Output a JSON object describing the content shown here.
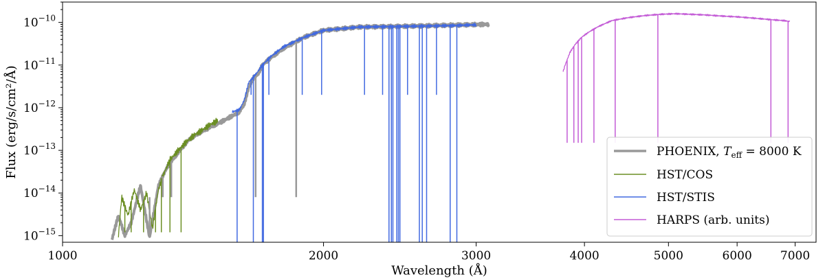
{
  "chart_data": {
    "type": "line",
    "title": "",
    "xlabel": "Wavelength (Å)",
    "ylabel": "Flux (erg/s/cm²/Å)",
    "x_scale": "log",
    "y_scale": "log",
    "xlim": [
      1000,
      7400
    ],
    "ylim": [
      7e-16,
      3e-10
    ],
    "x_ticks": [
      {
        "value": 1000,
        "label": "1000"
      },
      {
        "value": 2000,
        "label": "2000"
      },
      {
        "value": 3000,
        "label": "3000"
      },
      {
        "value": 4000,
        "label": "4000"
      },
      {
        "value": 5000,
        "label": "5000"
      },
      {
        "value": 6000,
        "label": "6000"
      },
      {
        "value": 7000,
        "label": "7000"
      }
    ],
    "y_ticks": [
      {
        "exp": -15,
        "label_base": "10",
        "label_exp": "−15"
      },
      {
        "exp": -14,
        "label_base": "10",
        "label_exp": "−14"
      },
      {
        "exp": -13,
        "label_base": "10",
        "label_exp": "−13"
      },
      {
        "exp": -12,
        "label_base": "10",
        "label_exp": "−12"
      },
      {
        "exp": -11,
        "label_base": "10",
        "label_exp": "−11"
      },
      {
        "exp": -10,
        "label_base": "10",
        "label_exp": "−10"
      }
    ],
    "grid": false,
    "legend_position": "bottom-right",
    "series": [
      {
        "name": "PHOENIX, T_eff = 8000 K",
        "legend_label": "PHOENIX, ",
        "legend_math": "T",
        "legend_sub": "eff",
        "legend_tail": " = 8000 K",
        "color": "#999999",
        "points": [
          [
            1140,
            8e-16
          ],
          [
            1160,
            3e-15
          ],
          [
            1180,
            1e-15
          ],
          [
            1200,
            2e-15
          ],
          [
            1230,
            1.5e-14
          ],
          [
            1260,
            9e-16
          ],
          [
            1290,
            1.5e-14
          ],
          [
            1320,
            4e-14
          ],
          [
            1360,
            9e-14
          ],
          [
            1400,
            1.8e-13
          ],
          [
            1440,
            2.6e-13
          ],
          [
            1480,
            3.5e-13
          ],
          [
            1520,
            4.5e-13
          ],
          [
            1560,
            6e-13
          ],
          [
            1600,
            8e-13
          ],
          [
            1620,
            1.2e-12
          ],
          [
            1640,
            3e-12
          ],
          [
            1660,
            5e-12
          ],
          [
            1680,
            6e-12
          ],
          [
            1700,
            1e-11
          ],
          [
            1740,
            1.5e-11
          ],
          [
            1800,
            2.5e-11
          ],
          [
            1900,
            4.5e-11
          ],
          [
            2000,
            6.5e-11
          ],
          [
            2200,
            7.8e-11
          ],
          [
            2400,
            8e-11
          ],
          [
            2600,
            8.3e-11
          ],
          [
            2800,
            8.6e-11
          ],
          [
            3000,
            8.9e-11
          ],
          [
            3100,
            9e-11
          ]
        ]
      },
      {
        "name": "HST/COS",
        "legend_label": "HST/COS",
        "color": "#6b8e23",
        "points": [
          [
            1160,
            1e-15
          ],
          [
            1170,
            8e-15
          ],
          [
            1190,
            3e-15
          ],
          [
            1210,
            1.2e-14
          ],
          [
            1230,
            4e-15
          ],
          [
            1250,
            1e-14
          ],
          [
            1270,
            1.5e-15
          ],
          [
            1290,
            1.2e-14
          ],
          [
            1310,
            3e-14
          ],
          [
            1330,
            6e-14
          ],
          [
            1360,
            1e-13
          ],
          [
            1390,
            1.6e-13
          ],
          [
            1420,
            2.3e-13
          ],
          [
            1450,
            3e-13
          ],
          [
            1480,
            4e-13
          ],
          [
            1510,
            5e-13
          ]
        ]
      },
      {
        "name": "HST/STIS",
        "legend_label": "HST/STIS",
        "color": "#4169e1",
        "points": [
          [
            1570,
            8e-13
          ],
          [
            1600,
            9e-13
          ],
          [
            1620,
            1.5e-12
          ],
          [
            1640,
            4e-12
          ],
          [
            1670,
            6e-12
          ],
          [
            1700,
            1e-11
          ],
          [
            1740,
            1.6e-11
          ],
          [
            1800,
            2.7e-11
          ],
          [
            1900,
            4.5e-11
          ],
          [
            2000,
            6.5e-11
          ],
          [
            2200,
            7.8e-11
          ],
          [
            2400,
            8e-11
          ],
          [
            2600,
            8.2e-11
          ],
          [
            2800,
            8.4e-11
          ],
          [
            2900,
            8.6e-11
          ],
          [
            3000,
            8.8e-11
          ]
        ]
      },
      {
        "name": "HARPS (arb. units)",
        "legend_label": "HARPS (arb. units)",
        "color": "#c35bd6",
        "points": [
          [
            3780,
            7e-12
          ],
          [
            3800,
            1e-11
          ],
          [
            3850,
            2e-11
          ],
          [
            3900,
            3e-11
          ],
          [
            3970,
            4.5e-11
          ],
          [
            4050,
            6e-11
          ],
          [
            4150,
            8e-11
          ],
          [
            4300,
            1.1e-10
          ],
          [
            4500,
            1.3e-10
          ],
          [
            4700,
            1.45e-10
          ],
          [
            4900,
            1.55e-10
          ],
          [
            5100,
            1.6e-10
          ],
          [
            5300,
            1.55e-10
          ],
          [
            5500,
            1.5e-10
          ],
          [
            5800,
            1.4e-10
          ],
          [
            6000,
            1.35e-10
          ],
          [
            6300,
            1.25e-10
          ],
          [
            6600,
            1.15e-10
          ],
          [
            6800,
            1.1e-10
          ],
          [
            6900,
            1.05e-10
          ]
        ]
      }
    ],
    "absorption_features": [
      {
        "series": "HST/STIS",
        "x": [
          1590,
          1660,
          1700,
          1705,
          2380,
          2395,
          2405,
          2430,
          2440,
          2450,
          2580,
          2600,
          2630,
          2800,
          2850
        ],
        "min": 7e-16
      },
      {
        "series": "HST/STIS",
        "x": [
          1650,
          1730,
          1890,
          1990,
          2230,
          2340,
          2500,
          2700
        ],
        "min": 2e-12
      },
      {
        "series": "HST/COS",
        "x": [
          1180,
          1200,
          1240,
          1280,
          1300,
          1330,
          1370
        ],
        "min": 1.2e-15
      },
      {
        "series": "HARPS (arb. units)",
        "x": [
          3820,
          3889,
          3934,
          3970,
          4102,
          4340,
          4861,
          6563,
          6870
        ],
        "min": 1.5e-13
      },
      {
        "series": "PHOENIX, T_eff = 8000 K",
        "x": [
          1260,
          1305,
          1335,
          1670,
          1860
        ],
        "min": 8e-15
      }
    ]
  }
}
